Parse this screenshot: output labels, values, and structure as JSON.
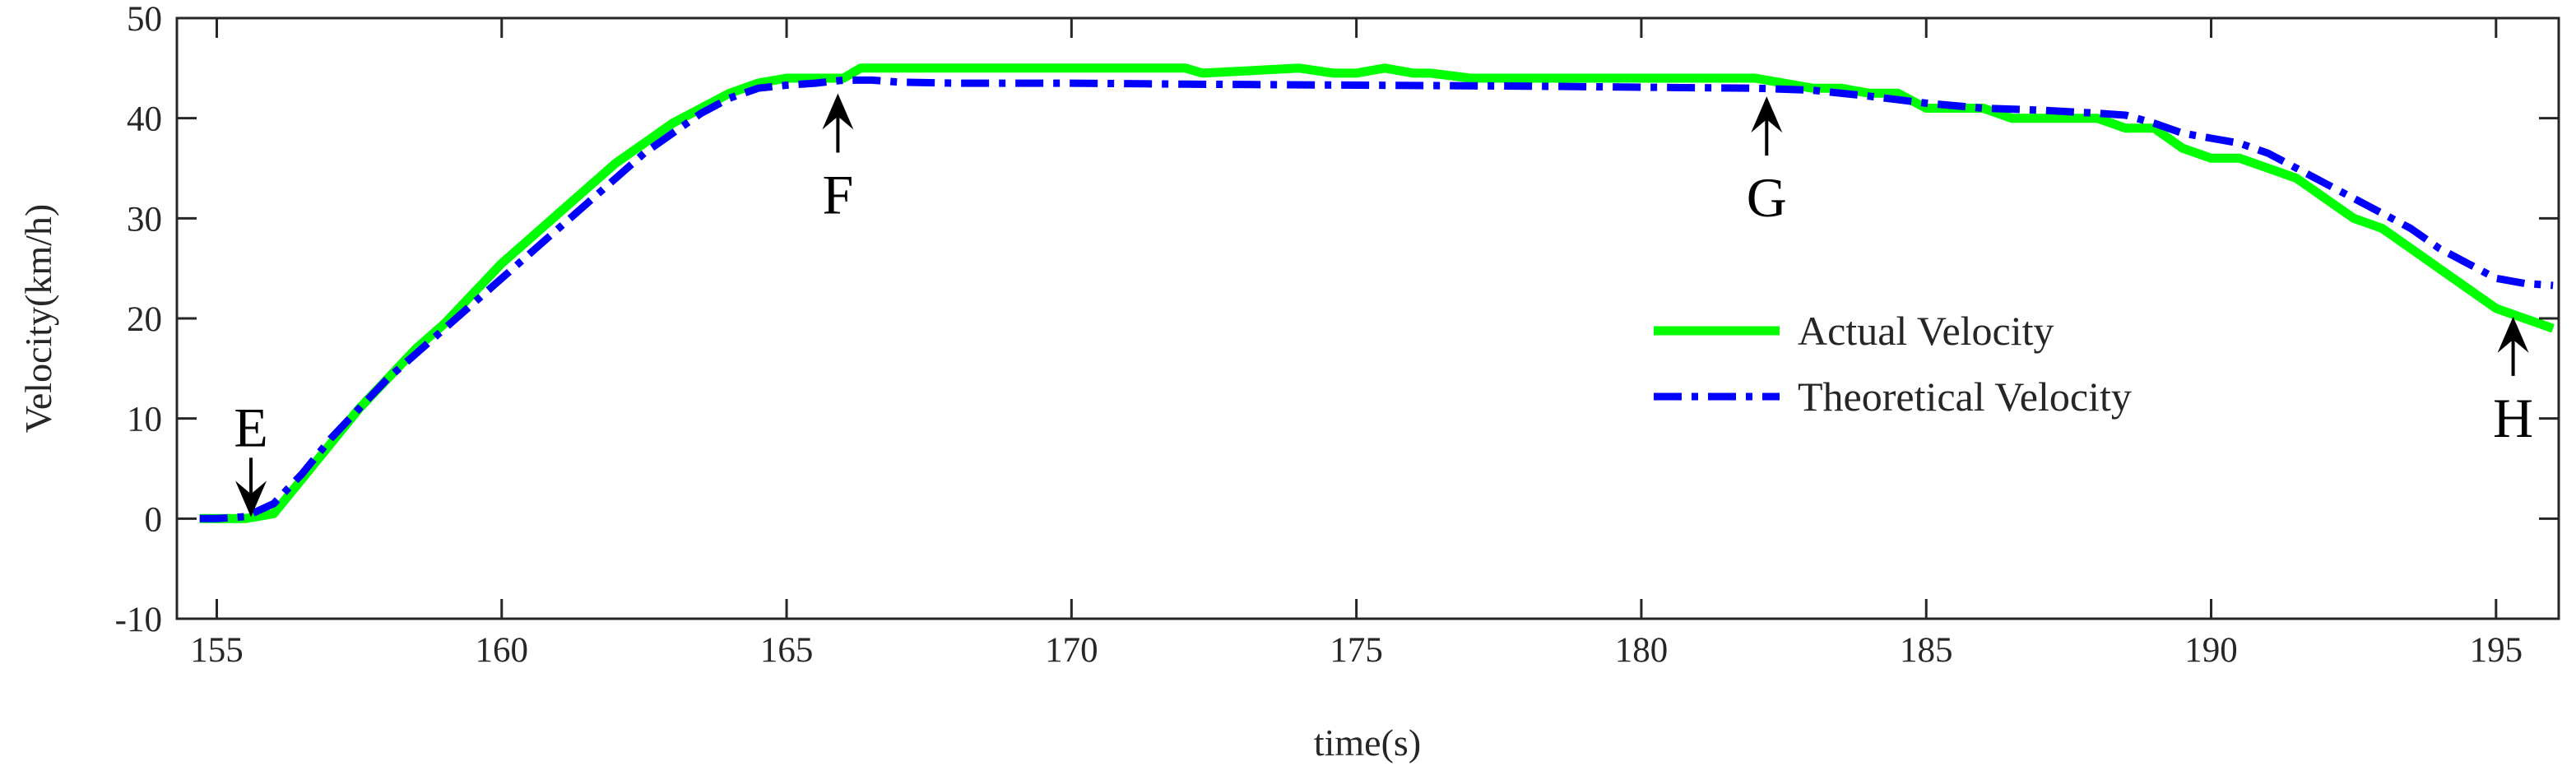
{
  "chart_data": {
    "type": "line",
    "xlabel": "time(s)",
    "ylabel": "Velocity(km/h)",
    "xlim": [
      154.3,
      196.1
    ],
    "ylim": [
      -10,
      50
    ],
    "xticks": [
      155,
      160,
      165,
      170,
      175,
      180,
      185,
      190,
      195
    ],
    "yticks": [
      -10,
      0,
      10,
      20,
      30,
      40,
      50
    ],
    "grid": false,
    "legend_position": "right",
    "series": [
      {
        "name": "Actual Velocity",
        "color": "#00ff00",
        "style": "solid",
        "x": [
          154.7,
          155.0,
          155.5,
          156.0,
          156.5,
          157.0,
          157.5,
          158.0,
          158.5,
          159.0,
          159.5,
          160.0,
          160.5,
          161.0,
          161.5,
          162.0,
          162.5,
          163.0,
          163.5,
          164.0,
          164.5,
          165.0,
          165.3,
          165.6,
          166.0,
          166.3,
          167.0,
          168.0,
          170.0,
          172.0,
          172.3,
          174.0,
          174.6,
          175.0,
          175.5,
          176.0,
          176.3,
          177.0,
          178.0,
          180.0,
          181.0,
          182.0,
          183.0,
          183.5,
          184.0,
          184.5,
          185.0,
          186.0,
          186.5,
          187.0,
          188.0,
          188.5,
          189.0,
          189.5,
          190.0,
          190.5,
          191.0,
          191.5,
          192.0,
          192.5,
          193.0,
          193.5,
          194.0,
          194.5,
          195.0,
          195.5,
          196.0
        ],
        "values": [
          0,
          0,
          0,
          0.5,
          4,
          7.5,
          11,
          14,
          17,
          19.5,
          22.5,
          25.5,
          28,
          30.5,
          33,
          35.5,
          37.5,
          39.5,
          41,
          42.5,
          43.5,
          44,
          44,
          44,
          44,
          45,
          45,
          45,
          45,
          45,
          44.5,
          45,
          44.5,
          44.5,
          45,
          44.5,
          44.5,
          44,
          44,
          44,
          44,
          44,
          43,
          43,
          42.5,
          42.5,
          41,
          41,
          40,
          40,
          40,
          39,
          39,
          37,
          36,
          36,
          35,
          34,
          32,
          30,
          29,
          27,
          25,
          23,
          21,
          20,
          19
        ]
      },
      {
        "name": "Theoretical Velocity",
        "color": "#0000ff",
        "style": "dashdot",
        "x": [
          154.7,
          155.0,
          155.5,
          156.0,
          156.5,
          157.0,
          157.5,
          158.0,
          158.5,
          159.0,
          159.5,
          160.0,
          160.5,
          161.0,
          161.5,
          162.0,
          162.5,
          163.0,
          163.5,
          164.0,
          164.5,
          165.0,
          165.5,
          166.0,
          166.5,
          167.0,
          168.0,
          170.0,
          172.0,
          175.0,
          178.0,
          180.0,
          182.0,
          183.0,
          184.0,
          185.0,
          186.0,
          187.0,
          188.0,
          188.5,
          189.0,
          189.5,
          190.0,
          190.5,
          191.0,
          191.5,
          192.0,
          192.5,
          193.0,
          193.5,
          194.0,
          194.5,
          195.0,
          195.5,
          196.0
        ],
        "values": [
          0,
          0,
          0.2,
          1.5,
          4.5,
          8,
          11,
          14,
          16.5,
          19,
          21.5,
          24,
          26.5,
          29,
          31.5,
          34,
          36.5,
          38.5,
          40.5,
          42,
          43,
          43.3,
          43.5,
          43.8,
          43.8,
          43.6,
          43.5,
          43.5,
          43.4,
          43.3,
          43.2,
          43.1,
          43,
          42.8,
          42.2,
          41.5,
          41,
          40.8,
          40.5,
          40.3,
          39.5,
          38.5,
          38,
          37.5,
          36.5,
          35,
          33.5,
          32,
          30.5,
          29,
          27,
          25.5,
          24,
          23.5,
          23.3
        ]
      }
    ],
    "annotations": [
      {
        "label": "E",
        "x": 155.6,
        "y": 0,
        "direction": "down"
      },
      {
        "label": "F",
        "x": 165.9,
        "y": 43.3,
        "direction": "up"
      },
      {
        "label": "G",
        "x": 182.2,
        "y": 43,
        "direction": "up"
      },
      {
        "label": "H",
        "x": 195.3,
        "y": 21,
        "direction": "up"
      }
    ]
  }
}
